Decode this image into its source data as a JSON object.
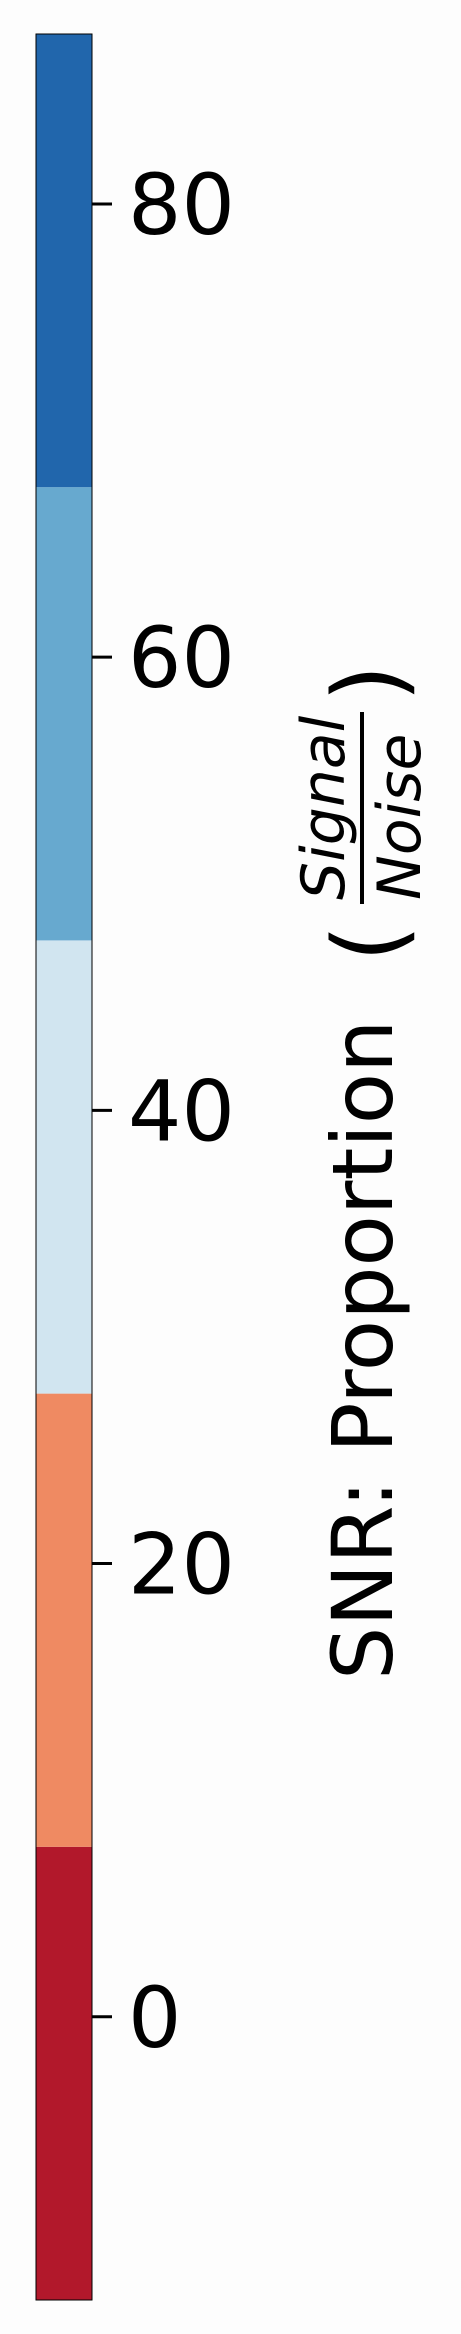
{
  "chart_data": {
    "type": "colorbar",
    "orientation": "vertical",
    "range": [
      -12.5,
      87.5
    ],
    "bins": [
      {
        "from": -12.5,
        "to": 7.5,
        "color": "#b2182b"
      },
      {
        "from": 7.5,
        "to": 27.5,
        "color": "#ef8a62"
      },
      {
        "from": 27.5,
        "to": 47.5,
        "color": "#d1e5f0"
      },
      {
        "from": 47.5,
        "to": 67.5,
        "color": "#67a9cf"
      },
      {
        "from": 67.5,
        "to": 87.5,
        "color": "#2166ac"
      }
    ],
    "ticks": [
      0,
      20,
      40,
      60,
      80
    ],
    "label": {
      "text": "SNR: Proportion",
      "numerator": "Signal",
      "denominator": "Noise"
    }
  }
}
